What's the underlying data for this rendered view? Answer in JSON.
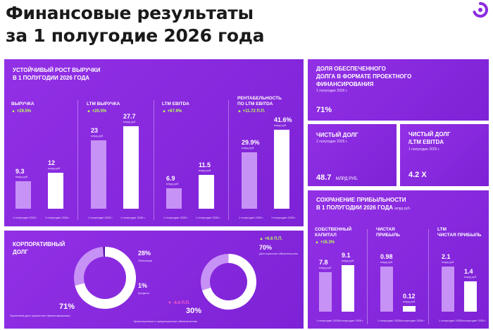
{
  "header": {
    "title_line1": "Финансовые результаты",
    "title_line2": "за 1 полугодие 2026 года"
  },
  "revenue_panel": {
    "title_line1": "УСТОЙЧИВЫЙ РОСТ ВЫРУЧКИ",
    "title_line2": "В 1 ПОЛУГОДИИ 2026 ГОДА"
  },
  "secured_debt": {
    "title_line1": "ДОЛЯ ОБЕСПЕЧЕННОГО",
    "title_line2": "ДОЛГА В ФОРМАТЕ ПРОЕКТНОГО",
    "title_line3": "ФИНАНСИРОВАНИЯ",
    "period": "1 полугодие 2026 г.",
    "value": "71%"
  },
  "net_debt": {
    "title": "ЧИСТЫЙ ДОЛГ",
    "period": "1 полугодие 2026 г.",
    "value": "48.7",
    "unit": "МЛРД РУБ."
  },
  "net_debt_ebitda": {
    "title_line1": "ЧИСТЫЙ ДОЛГ",
    "title_line2": "/LTM EBITDA",
    "period": "1 полугодие 2026 г.",
    "value": "4.2 Х"
  },
  "profit_panel": {
    "title_line1": "СОХРАНЕНИЕ ПРИБЫЛЬНОСТИ",
    "title_line2": "В 1 ПОЛУГОДИИ 2026 ГОДА",
    "unit": "млрд руб."
  },
  "corp_debt": {
    "title_line1": "КОРПОРАТИВНЫЙ",
    "title_line2": "ДОЛГ"
  },
  "colors": {
    "accent": "#8a2be2",
    "light_bar": "#c792f5",
    "growth": "#b8ff5a",
    "decline": "#ff5fc4"
  },
  "chart_data": [
    {
      "type": "bar",
      "name": "ВЫРУЧКА",
      "growth": "+29.5%",
      "categories": [
        "1 полугодие 2025 г.",
        "1 полугодие 2026 г."
      ],
      "values": [
        9.3,
        12
      ],
      "value_labels": [
        "9.3",
        "12"
      ],
      "unit_labels": [
        "млрд руб.",
        "млрд руб."
      ],
      "ylim": [
        0,
        28
      ]
    },
    {
      "type": "bar",
      "name": "LTM ВЫРУЧКА",
      "growth": "+20.5%",
      "categories": [
        "1 полугодие 2025 г.",
        "1 полугодие 2026 г."
      ],
      "values": [
        23,
        27.7
      ],
      "value_labels": [
        "23",
        "27.7"
      ],
      "unit_labels": [
        "млрд руб.",
        "млрд руб."
      ],
      "ylim": [
        0,
        28
      ]
    },
    {
      "type": "bar",
      "name": "LTM EBITDA",
      "growth": "+67.9%",
      "categories": [
        "1 полугодие 2025 г.",
        "1 полугодие 2026 г."
      ],
      "values": [
        6.9,
        11.5
      ],
      "value_labels": [
        "6.9",
        "11.5"
      ],
      "unit_labels": [
        "млрд руб.",
        "млрд руб."
      ],
      "ylim": [
        0,
        28
      ]
    },
    {
      "type": "bar",
      "name": "РЕНТАБЕЛЬНОСТЬ ПО LTM EBITDA",
      "name_line1": "РЕНТАБЕЛЬНОСТЬ",
      "name_line2": "ПО LTM EBITDA",
      "growth": "+11.72 П.П.",
      "categories": [
        "1 полугодие 2025 г.",
        "1 полугодие 2026 г."
      ],
      "values": [
        29.9,
        41.6
      ],
      "value_labels": [
        "29.9%",
        "41.6%"
      ],
      "unit_labels": [
        "млрд руб.",
        "млрд руб."
      ],
      "ylim": [
        0,
        44
      ]
    },
    {
      "type": "pie",
      "slices": [
        {
          "label": "Проектный долг (проектное финансирование)",
          "value": 71,
          "display": "71%"
        },
        {
          "label": "Облигации",
          "value": 28,
          "display": "28%"
        },
        {
          "label": "Кредиты",
          "value": 1,
          "display": "1%"
        }
      ]
    },
    {
      "type": "pie",
      "slices": [
        {
          "label": "Долгосрочные обязательства",
          "value": 70,
          "display": "70%",
          "change": "+6.6 П.П."
        },
        {
          "label": "Краткосрочные и среднесрочные обязательства",
          "value": 30,
          "display": "30%",
          "change": "-6.6 П.П."
        }
      ]
    },
    {
      "type": "bar",
      "name_line1": "СОБСТВЕННЫЙ",
      "name_line2": "КАПИТАЛ",
      "growth": "+16.3%",
      "categories": [
        "1 полугодие 2025 г.",
        "1 полугодие 2026 г."
      ],
      "values": [
        7.8,
        9.1
      ],
      "value_labels": [
        "7.8",
        "9.1"
      ],
      "unit_labels": [
        "млрд руб.",
        "млрд руб."
      ],
      "ylim": [
        0,
        10
      ]
    },
    {
      "type": "bar",
      "name_line1": "ЧИСТАЯ",
      "name_line2": "ПРИБЫЛЬ",
      "categories": [
        "1 полугодие 2025 г.",
        "1 полугодие 2026 г."
      ],
      "values": [
        0.98,
        0.12
      ],
      "value_labels": [
        "0.98",
        "0.12"
      ],
      "unit_labels": [
        "млрд руб.",
        "млрд руб."
      ],
      "ylim": [
        0,
        1.1
      ]
    },
    {
      "type": "bar",
      "name_line1": "LTM",
      "name_line2": "ЧИСТАЯ ПРИБЫЛЬ",
      "categories": [
        "1 полугодие 2025 г.",
        "1 полугодие 2026 г."
      ],
      "values": [
        2.1,
        1.4
      ],
      "value_labels": [
        "2.1",
        "1.4"
      ],
      "unit_labels": [
        "млрд руб.",
        "млрд руб."
      ],
      "ylim": [
        0,
        2.35
      ]
    }
  ]
}
